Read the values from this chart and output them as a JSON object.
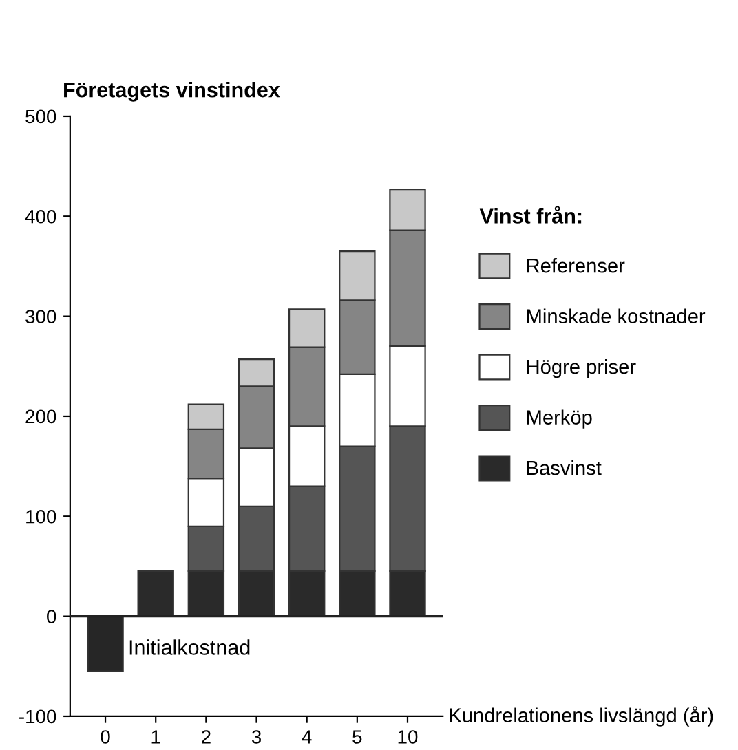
{
  "chart_data": {
    "type": "bar",
    "stacked": true,
    "title": "Företagets vinstindex",
    "xlabel": "Kundrelationens livslängd (år)",
    "legend_title": "Vinst från:",
    "categories": [
      "0",
      "1",
      "2",
      "3",
      "4",
      "5",
      "10"
    ],
    "series": [
      {
        "color": "#262626",
        "values": [
          -55,
          null,
          null,
          null,
          null,
          null,
          null
        ]
      },
      {
        "name": "Basvinst",
        "color": "#2a2a2a",
        "values": [
          null,
          45,
          45,
          45,
          45,
          45,
          45
        ]
      },
      {
        "name": "Merköp",
        "color": "#555555",
        "values": [
          null,
          null,
          45,
          65,
          85,
          125,
          145
        ]
      },
      {
        "name": "Högre priser",
        "color": "#ffffff",
        "values": [
          null,
          null,
          48,
          58,
          60,
          72,
          80
        ]
      },
      {
        "name": "Minskade kostnader",
        "color": "#858585",
        "values": [
          null,
          null,
          49,
          62,
          79,
          74,
          116
        ]
      },
      {
        "name": "Referenser",
        "color": "#c8c8c8",
        "values": [
          null,
          null,
          25,
          27,
          38,
          49,
          41
        ]
      }
    ],
    "annotations": [
      "Initialkostnad"
    ],
    "ref_lines": [
      {
        "axis": "y",
        "value": 0,
        "color": "#222222"
      }
    ],
    "ylim": [
      -100,
      500
    ],
    "yticks": [
      -100,
      0,
      100,
      200,
      300,
      400,
      500
    ],
    "grid": false,
    "legend": "right"
  }
}
